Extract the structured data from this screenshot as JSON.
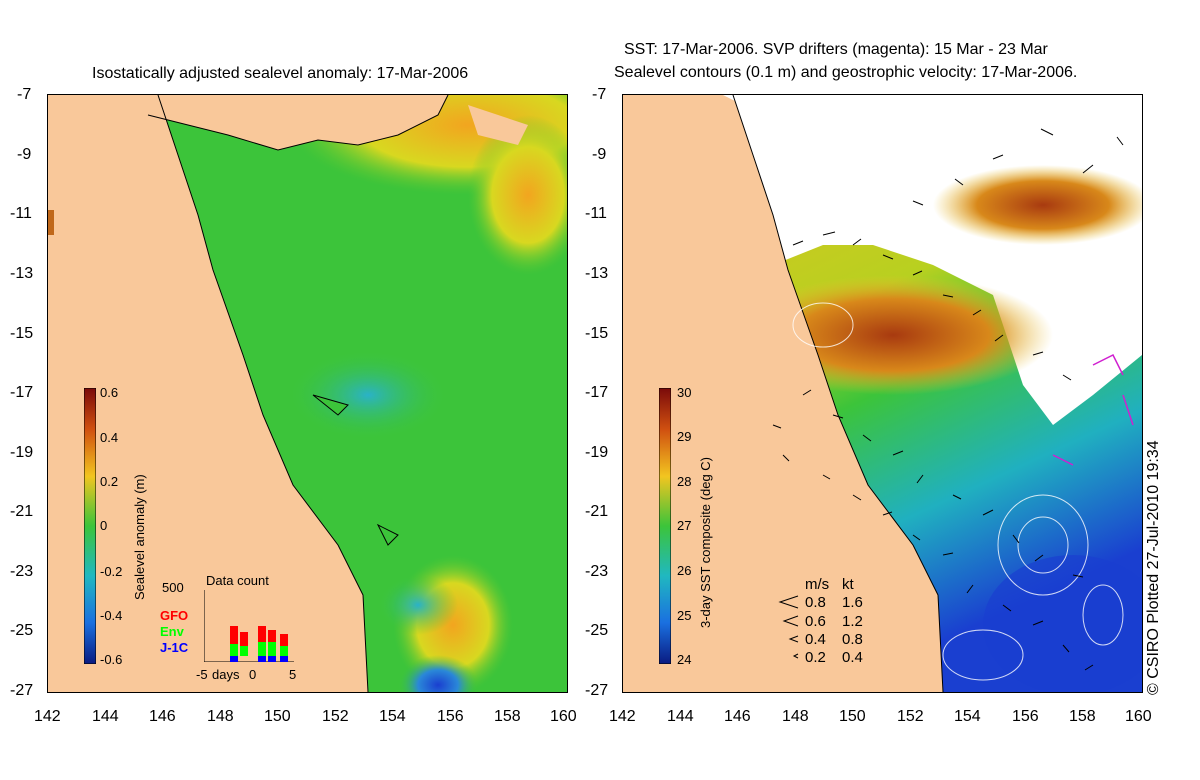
{
  "left": {
    "title": "Isostatically adjusted sealevel anomaly: 17-Mar-2006",
    "colorbar_label": "Sealevel anomaly (m)",
    "colorbar_ticks": [
      "0.6",
      "0.4",
      "0.2",
      "0",
      "-0.2",
      "-0.4",
      "-0.6"
    ],
    "inset": {
      "title": "Data count",
      "ymax": "500",
      "legend": [
        {
          "label": "GFO",
          "color": "#ff0000"
        },
        {
          "label": "Env",
          "color": "#00ff00"
        },
        {
          "label": "J-1C",
          "color": "#0000ff"
        }
      ],
      "x_ticks": [
        "-5",
        "days",
        "0",
        "5"
      ]
    }
  },
  "right": {
    "title_line1": "SST: 17-Mar-2006. SVP drifters (magenta): 15 Mar - 23 Mar",
    "title_line2": "Sealevel contours (0.1 m) and geostrophic velocity: 17-Mar-2006.",
    "colorbar_label": "3-day SST composite (deg C)",
    "colorbar_ticks": [
      "30",
      "29",
      "28",
      "27",
      "26",
      "25",
      "24"
    ],
    "speed_legend": {
      "header_ms": "m/s",
      "header_kt": "kt",
      "rows": [
        {
          "ms": "0.8",
          "kt": "1.6"
        },
        {
          "ms": "0.6",
          "kt": "1.2"
        },
        {
          "ms": "0.4",
          "kt": "0.8"
        },
        {
          "ms": "0.2",
          "kt": "0.4"
        }
      ]
    }
  },
  "y_ticks": [
    "-7",
    "-9",
    "-11",
    "-13",
    "-15",
    "-17",
    "-19",
    "-21",
    "-23",
    "-25",
    "-27"
  ],
  "x_ticks": [
    "142",
    "144",
    "146",
    "148",
    "150",
    "152",
    "154",
    "156",
    "158",
    "160"
  ],
  "copyright": "© CSIRO Plotted 27-Jul-2010 19:34",
  "colors": {
    "land": "#f9c89a",
    "sla_base": "#3cc43a",
    "sst_cold": "#1a3fd0",
    "sst_warm": "#c04a10"
  }
}
